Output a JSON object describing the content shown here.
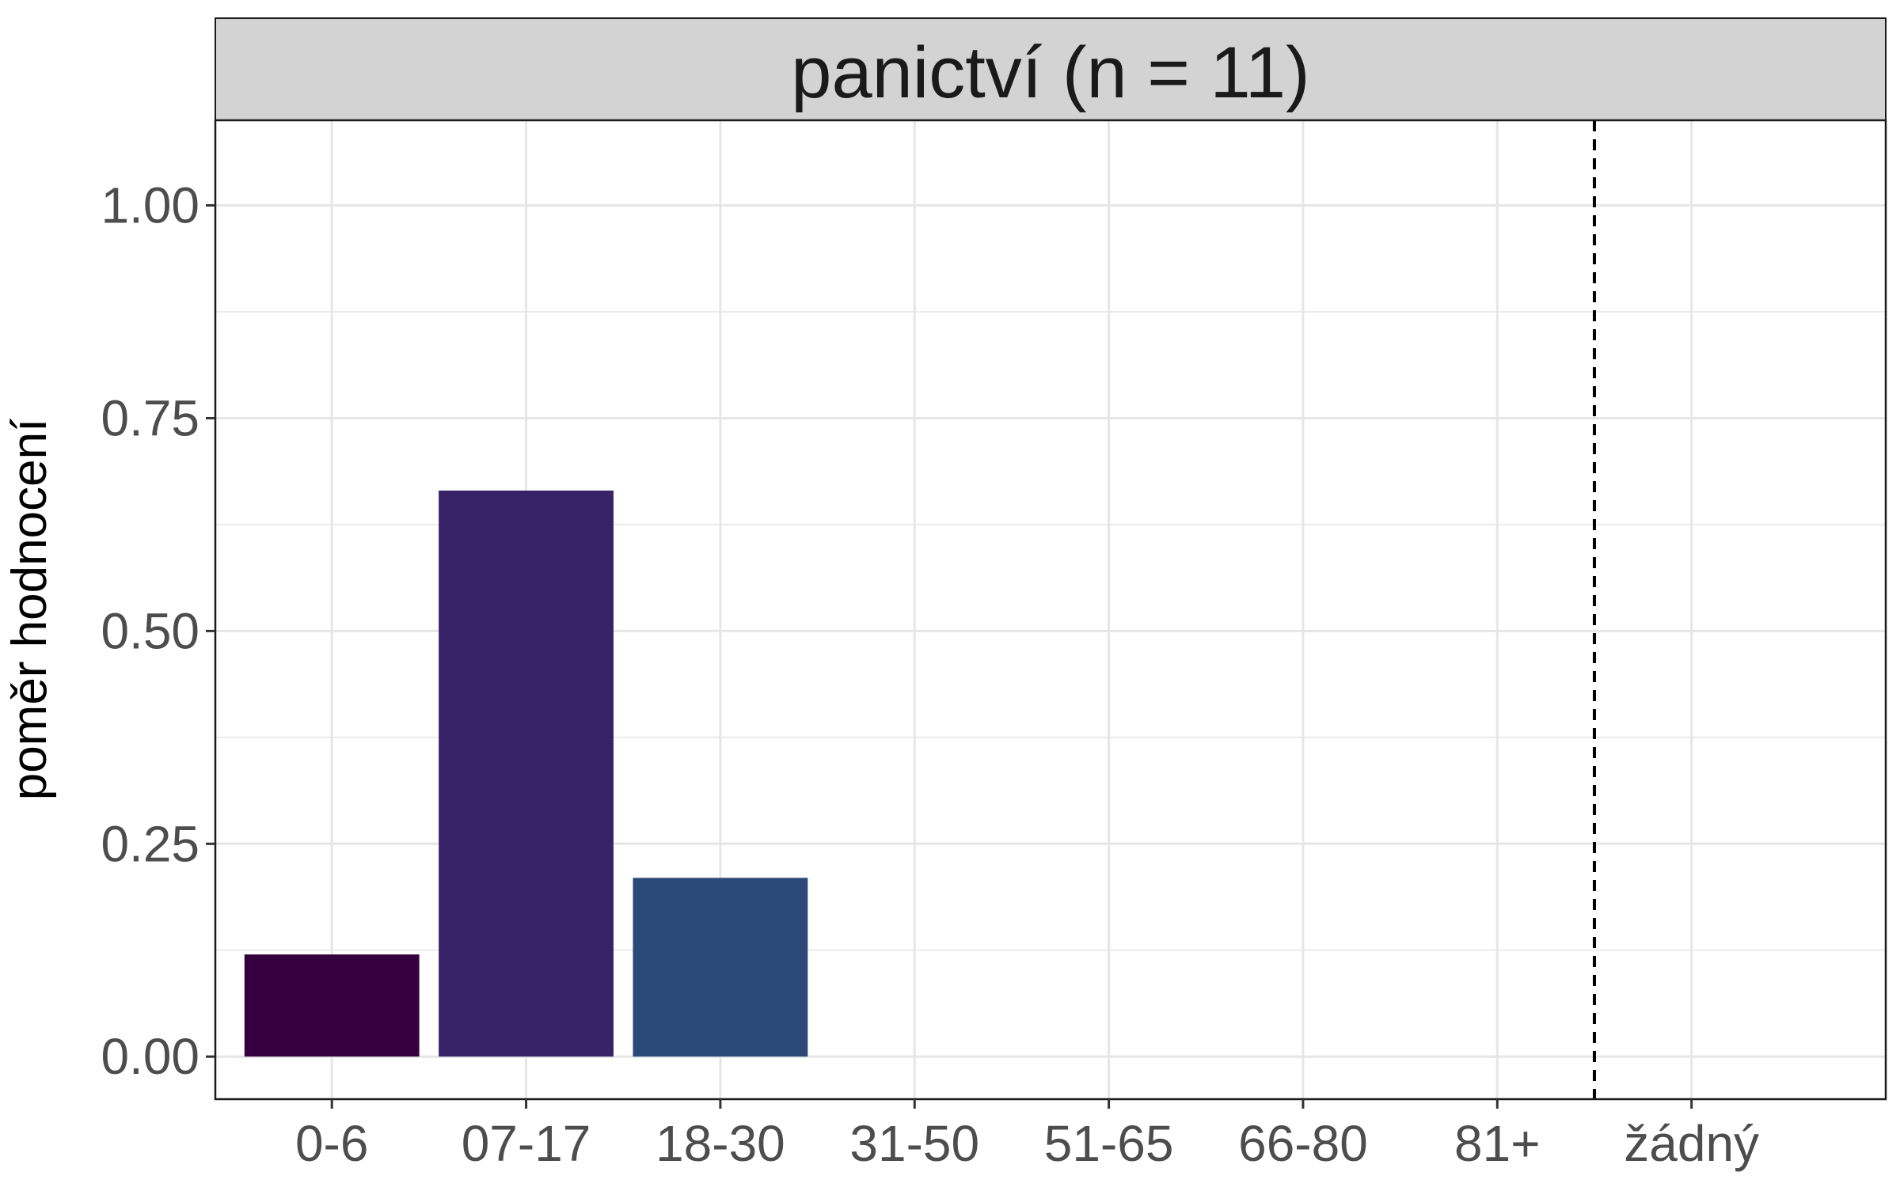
{
  "chart_data": {
    "type": "bar",
    "title": "",
    "facet_label": "panictví (n = 11)",
    "xlabel": "",
    "ylabel": "poměr hodnocení",
    "categories": [
      "0-6",
      "07-17",
      "18-30",
      "31-50",
      "51-65",
      "66-80",
      "81+",
      "žádný"
    ],
    "values": [
      0.12,
      0.665,
      0.21,
      0,
      0,
      0,
      0,
      0
    ],
    "bar_colors": [
      "#35003D",
      "#372268",
      "#2B4978",
      null,
      null,
      null,
      null,
      null
    ],
    "ylim": [
      -0.05,
      1.1
    ],
    "yticks": [
      0.0,
      0.25,
      0.5,
      0.75,
      1.0
    ],
    "ytick_labels": [
      "0.00",
      "0.25",
      "0.50",
      "0.75",
      "1.00"
    ],
    "grid": true,
    "reference_line": {
      "style": "dashed",
      "between": [
        "81+",
        "žádný"
      ],
      "color": "#000000"
    },
    "legend": "none"
  }
}
